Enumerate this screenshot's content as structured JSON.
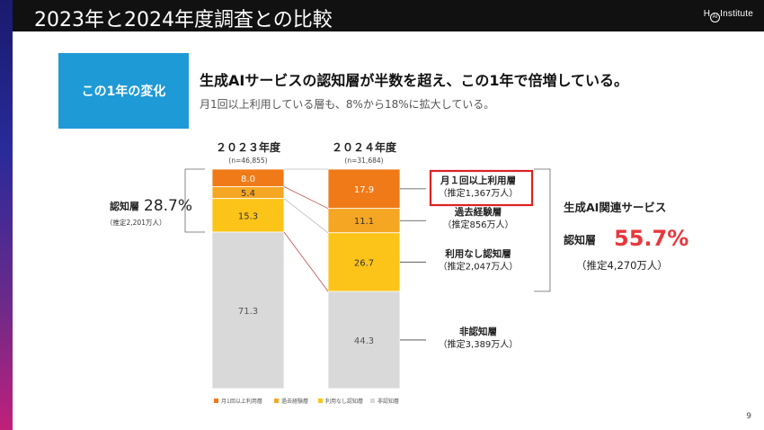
{
  "header": {
    "title": "2023年と2024年度調査との比較",
    "logo_text": "Institute",
    "logo_mark": "H",
    "logo_ring_text": "AI"
  },
  "tag": {
    "label": "この1年の変化"
  },
  "headline": "生成AIサービスの認知層が半数を超え、この1年で倍増している。",
  "subline": "月1回以上利用している層も、8%から18%に拡大している。",
  "page_number": "9",
  "colors": {
    "monthly_user": "#f07a17",
    "past_experience": "#f5a623",
    "aware_non_user": "#fcc419",
    "unaware": "#d9d9d9",
    "highlight_box": "#e02020",
    "big_percent": "#e8383d",
    "tag_bg": "#1e9ad6"
  },
  "chart_data": {
    "type": "bar",
    "stacked": true,
    "normalized": true,
    "ylim": [
      0,
      100
    ],
    "categories": [
      "２０２３年度",
      "２０２４年度"
    ],
    "sample_sizes": [
      "(n=46,855)",
      "(n=31,684)"
    ],
    "series": [
      {
        "name": "非認知層",
        "values": [
          71.3,
          44.3
        ],
        "color": "#d9d9d9"
      },
      {
        "name": "利用なし認知層",
        "values": [
          15.3,
          26.7
        ],
        "color": "#fcc419"
      },
      {
        "name": "過去経験層",
        "values": [
          5.4,
          11.1
        ],
        "color": "#f5a623"
      },
      {
        "name": "月1回以上利用層",
        "values": [
          8.0,
          17.9
        ],
        "color": "#f07a17"
      }
    ],
    "data_labels": [
      [
        "71.3",
        "15.3",
        "5.4",
        "8.0"
      ],
      [
        "44.3",
        "26.7",
        "11.1",
        "17.9"
      ]
    ],
    "legend": [
      "月1回以上利用層",
      "過去経験層",
      "利用なし認知層",
      "非認知層"
    ],
    "legend_position": "bottom-left",
    "left_annotation": {
      "label": "認知層",
      "percent": "28.7%",
      "estimate": "（推定2,201万人）"
    },
    "right_labels": [
      {
        "line1": "月１回以上利用層",
        "line2": "（推定1,367万人）",
        "highlighted": true
      },
      {
        "line1": "過去経験層",
        "line2": "（推定856万人）"
      },
      {
        "line1": "利用なし認知層",
        "line2": "（推定2,047万人）"
      },
      {
        "line1": "非認知層",
        "line2": "（推定3,389万人）"
      }
    ],
    "right_annotation": {
      "title": "生成AI関連サービス",
      "label": "認知層",
      "percent": "55.7%",
      "estimate": "（推定4,270万人）"
    }
  }
}
